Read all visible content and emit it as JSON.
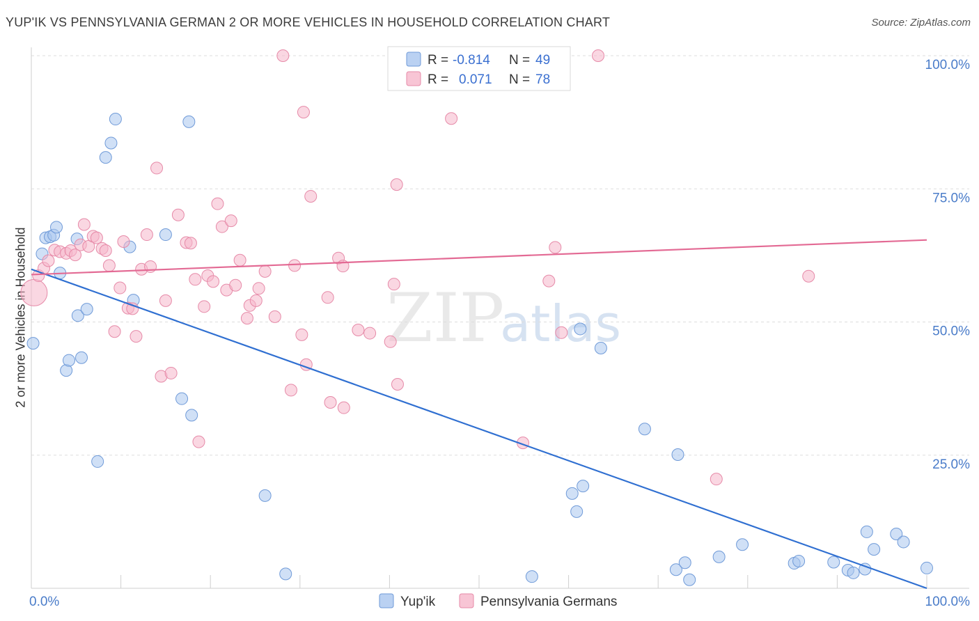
{
  "title": "YUP'IK VS PENNSYLVANIA GERMAN 2 OR MORE VEHICLES IN HOUSEHOLD CORRELATION CHART",
  "source": "Source: ZipAtlas.com",
  "watermark": {
    "zip": "ZIP",
    "atlas": "atlas"
  },
  "legend": {
    "rows": [
      {
        "r_label": "R =",
        "r_value": "-0.814",
        "n_label": "N =",
        "n_value": "49",
        "color": "#a9c6ef"
      },
      {
        "r_label": "R =",
        "r_value": "0.071",
        "n_label": "N =",
        "n_value": "78",
        "color": "#f6b6ca"
      }
    ]
  },
  "bottom_legend": [
    {
      "label": "Yup'ik",
      "color": "#a9c6ef"
    },
    {
      "label": "Pennsylvania Germans",
      "color": "#f6b6ca"
    }
  ],
  "chart_data": {
    "type": "scatter",
    "title": "YUP'IK VS PENNSYLVANIA GERMAN 2 OR MORE VEHICLES IN HOUSEHOLD CORRELATION CHART",
    "xlabel": "",
    "ylabel": "2 or more Vehicles in Household",
    "xlim": [
      0,
      100
    ],
    "ylim": [
      0,
      100
    ],
    "x_tick_labels": [
      "0.0%",
      "100.0%"
    ],
    "y_tick_labels": [
      "25.0%",
      "50.0%",
      "75.0%",
      "100.0%"
    ],
    "y_ticks": [
      25,
      50,
      75,
      100
    ],
    "grid": true,
    "series": [
      {
        "name": "Yup'ik",
        "color": "#a9c6ef",
        "edge": "#6f9ad8",
        "line_color": "#2f6fd1",
        "trend": [
          [
            0,
            59.9
          ],
          [
            100,
            0.0
          ]
        ],
        "points": [
          [
            0.2,
            46.0
          ],
          [
            1.2,
            62.8
          ],
          [
            1.6,
            65.8
          ],
          [
            2.1,
            66.0
          ],
          [
            2.5,
            66.3
          ],
          [
            2.8,
            67.8
          ],
          [
            3.2,
            59.2
          ],
          [
            3.9,
            40.9
          ],
          [
            4.2,
            42.8
          ],
          [
            5.2,
            51.2
          ],
          [
            5.6,
            43.3
          ],
          [
            6.2,
            52.4
          ],
          [
            5.1,
            65.6
          ],
          [
            7.4,
            23.8
          ],
          [
            8.3,
            80.9
          ],
          [
            8.9,
            83.6
          ],
          [
            9.4,
            88.1
          ],
          [
            11.0,
            64.1
          ],
          [
            11.4,
            54.1
          ],
          [
            15.0,
            66.4
          ],
          [
            16.8,
            35.6
          ],
          [
            17.6,
            87.6
          ],
          [
            17.9,
            32.5
          ],
          [
            26.1,
            17.4
          ],
          [
            28.4,
            2.7
          ],
          [
            55.9,
            2.2
          ],
          [
            60.4,
            17.8
          ],
          [
            60.9,
            14.4
          ],
          [
            61.6,
            19.2
          ],
          [
            61.3,
            48.7
          ],
          [
            63.6,
            45.1
          ],
          [
            68.5,
            29.9
          ],
          [
            72.0,
            3.5
          ],
          [
            72.2,
            25.1
          ],
          [
            73.0,
            4.8
          ],
          [
            73.5,
            1.6
          ],
          [
            76.8,
            5.9
          ],
          [
            79.4,
            8.2
          ],
          [
            85.2,
            4.7
          ],
          [
            85.7,
            5.1
          ],
          [
            89.6,
            4.9
          ],
          [
            91.2,
            3.4
          ],
          [
            91.8,
            2.9
          ],
          [
            93.1,
            3.6
          ],
          [
            93.3,
            10.6
          ],
          [
            94.1,
            7.3
          ],
          [
            96.6,
            10.2
          ],
          [
            97.4,
            8.7
          ],
          [
            100.0,
            3.8
          ]
        ]
      },
      {
        "name": "Pennsylvania Germans",
        "color": "#f6b6ca",
        "edge": "#e68aa8",
        "line_color": "#e36a94",
        "trend": [
          [
            0,
            58.9
          ],
          [
            100,
            65.4
          ]
        ],
        "points": [
          [
            0.3,
            55.5
          ],
          [
            0.8,
            58.7
          ],
          [
            1.4,
            60.1
          ],
          [
            1.9,
            61.5
          ],
          [
            2.6,
            63.5
          ],
          [
            3.2,
            63.2
          ],
          [
            3.9,
            62.9
          ],
          [
            4.4,
            63.4
          ],
          [
            4.9,
            62.6
          ],
          [
            5.5,
            64.5
          ],
          [
            5.9,
            68.3
          ],
          [
            6.4,
            64.2
          ],
          [
            6.9,
            66.1
          ],
          [
            7.3,
            65.8
          ],
          [
            7.9,
            63.8
          ],
          [
            8.3,
            63.4
          ],
          [
            8.7,
            60.6
          ],
          [
            9.3,
            48.2
          ],
          [
            9.9,
            56.4
          ],
          [
            10.3,
            65.1
          ],
          [
            10.8,
            52.6
          ],
          [
            11.3,
            52.5
          ],
          [
            11.7,
            47.3
          ],
          [
            12.3,
            59.9
          ],
          [
            12.9,
            66.4
          ],
          [
            13.3,
            60.4
          ],
          [
            14.0,
            78.9
          ],
          [
            14.5,
            39.8
          ],
          [
            15.0,
            54.0
          ],
          [
            15.6,
            40.4
          ],
          [
            16.4,
            70.1
          ],
          [
            17.3,
            64.9
          ],
          [
            17.8,
            64.8
          ],
          [
            18.3,
            58.0
          ],
          [
            18.7,
            27.5
          ],
          [
            19.3,
            52.9
          ],
          [
            19.7,
            58.7
          ],
          [
            20.3,
            57.6
          ],
          [
            20.8,
            72.2
          ],
          [
            21.3,
            67.9
          ],
          [
            21.8,
            56.0
          ],
          [
            22.3,
            69.0
          ],
          [
            22.8,
            56.9
          ],
          [
            23.3,
            61.6
          ],
          [
            24.1,
            50.7
          ],
          [
            24.4,
            53.1
          ],
          [
            25.1,
            54.0
          ],
          [
            25.4,
            56.3
          ],
          [
            26.1,
            59.5
          ],
          [
            27.2,
            51.0
          ],
          [
            28.1,
            100.0
          ],
          [
            29.0,
            37.2
          ],
          [
            29.4,
            60.6
          ],
          [
            30.2,
            47.6
          ],
          [
            30.7,
            42.0
          ],
          [
            30.4,
            89.4
          ],
          [
            31.2,
            73.6
          ],
          [
            33.1,
            54.6
          ],
          [
            33.4,
            34.9
          ],
          [
            34.3,
            62.0
          ],
          [
            34.8,
            60.5
          ],
          [
            34.9,
            33.9
          ],
          [
            37.8,
            47.9
          ],
          [
            40.1,
            46.3
          ],
          [
            40.5,
            57.1
          ],
          [
            40.9,
            38.3
          ],
          [
            44.7,
            100.0
          ],
          [
            46.9,
            88.2
          ],
          [
            48.6,
            100.0
          ],
          [
            54.9,
            27.3
          ],
          [
            57.8,
            57.7
          ],
          [
            58.5,
            64.0
          ],
          [
            63.3,
            100.0
          ],
          [
            76.5,
            20.5
          ],
          [
            86.8,
            58.6
          ],
          [
            59.2,
            48.0
          ],
          [
            40.8,
            75.8
          ],
          [
            36.5,
            48.5
          ]
        ]
      }
    ]
  }
}
